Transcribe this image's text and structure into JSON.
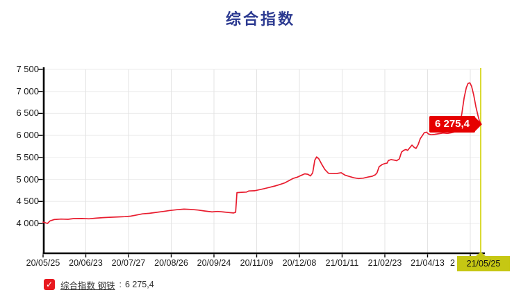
{
  "title": "综合指数",
  "colors": {
    "line": "#e81c2e",
    "callout_bg": "#e60000",
    "callout_text": "#ffffff",
    "crosshair": "#d0d100",
    "highlight_bg": "#c6c713",
    "title": "#2b3990",
    "checkbox": "#e8191f",
    "grid_h": "#ebebeb",
    "grid_v": "#e3e3e3",
    "axis": "#000000"
  },
  "chart_data": {
    "type": "line",
    "title": "综合指数",
    "series_name": "综合指数 钢铁",
    "ylim": [
      3320,
      7500
    ],
    "grid": true,
    "y_ticks": [
      {
        "label": "7 500",
        "value": 7500
      },
      {
        "label": "7 000",
        "value": 7000
      },
      {
        "label": "6 500",
        "value": 6500
      },
      {
        "label": "6 000",
        "value": 6000
      },
      {
        "label": "5 500",
        "value": 5500
      },
      {
        "label": "5 000",
        "value": 5000
      },
      {
        "label": "4 500",
        "value": 4500
      },
      {
        "label": "4 000",
        "value": 4000
      }
    ],
    "x_ticks": [
      "20/05/25",
      "20/06/23",
      "20/07/27",
      "20/08/26",
      "20/09/24",
      "20/11/09",
      "20/12/08",
      "21/01/11",
      "21/02/23",
      "21/04/13"
    ],
    "x_partial_label": "2",
    "highlighted_x_label": "21/05/25",
    "last_value": 6275.4,
    "last_value_label": "6 275,4",
    "points": [
      [
        0.0,
        4030
      ],
      [
        0.005,
        4015
      ],
      [
        0.01,
        4000
      ],
      [
        0.016,
        4058
      ],
      [
        0.025,
        4088
      ],
      [
        0.041,
        4100
      ],
      [
        0.057,
        4095
      ],
      [
        0.07,
        4110
      ],
      [
        0.089,
        4112
      ],
      [
        0.105,
        4105
      ],
      [
        0.121,
        4120
      ],
      [
        0.137,
        4132
      ],
      [
        0.152,
        4140
      ],
      [
        0.171,
        4148
      ],
      [
        0.187,
        4155
      ],
      [
        0.2,
        4165
      ],
      [
        0.213,
        4190
      ],
      [
        0.227,
        4218
      ],
      [
        0.243,
        4230
      ],
      [
        0.259,
        4252
      ],
      [
        0.275,
        4272
      ],
      [
        0.29,
        4295
      ],
      [
        0.306,
        4312
      ],
      [
        0.322,
        4325
      ],
      [
        0.338,
        4318
      ],
      [
        0.354,
        4305
      ],
      [
        0.37,
        4282
      ],
      [
        0.386,
        4262
      ],
      [
        0.398,
        4272
      ],
      [
        0.411,
        4262
      ],
      [
        0.425,
        4248
      ],
      [
        0.435,
        4238
      ],
      [
        0.44,
        4255
      ],
      [
        0.443,
        4700
      ],
      [
        0.454,
        4708
      ],
      [
        0.465,
        4712
      ],
      [
        0.47,
        4738
      ],
      [
        0.483,
        4742
      ],
      [
        0.492,
        4762
      ],
      [
        0.505,
        4790
      ],
      [
        0.517,
        4818
      ],
      [
        0.53,
        4852
      ],
      [
        0.541,
        4885
      ],
      [
        0.552,
        4920
      ],
      [
        0.562,
        4975
      ],
      [
        0.571,
        5022
      ],
      [
        0.581,
        5052
      ],
      [
        0.59,
        5092
      ],
      [
        0.598,
        5128
      ],
      [
        0.605,
        5118
      ],
      [
        0.611,
        5080
      ],
      [
        0.616,
        5150
      ],
      [
        0.621,
        5440
      ],
      [
        0.625,
        5510
      ],
      [
        0.63,
        5470
      ],
      [
        0.637,
        5340
      ],
      [
        0.644,
        5225
      ],
      [
        0.652,
        5140
      ],
      [
        0.662,
        5132
      ],
      [
        0.671,
        5135
      ],
      [
        0.681,
        5152
      ],
      [
        0.69,
        5098
      ],
      [
        0.7,
        5068
      ],
      [
        0.71,
        5038
      ],
      [
        0.721,
        5020
      ],
      [
        0.732,
        5030
      ],
      [
        0.743,
        5055
      ],
      [
        0.752,
        5072
      ],
      [
        0.759,
        5105
      ],
      [
        0.763,
        5150
      ],
      [
        0.768,
        5290
      ],
      [
        0.775,
        5340
      ],
      [
        0.781,
        5360
      ],
      [
        0.786,
        5370
      ],
      [
        0.789,
        5430
      ],
      [
        0.795,
        5450
      ],
      [
        0.802,
        5440
      ],
      [
        0.808,
        5425
      ],
      [
        0.814,
        5465
      ],
      [
        0.819,
        5620
      ],
      [
        0.824,
        5660
      ],
      [
        0.829,
        5680
      ],
      [
        0.833,
        5660
      ],
      [
        0.838,
        5720
      ],
      [
        0.843,
        5780
      ],
      [
        0.848,
        5730
      ],
      [
        0.852,
        5705
      ],
      [
        0.857,
        5790
      ],
      [
        0.862,
        5930
      ],
      [
        0.867,
        6000
      ],
      [
        0.871,
        6060
      ],
      [
        0.876,
        6075
      ],
      [
        0.881,
        6030
      ],
      [
        0.887,
        6015
      ],
      [
        0.895,
        6025
      ],
      [
        0.905,
        6040
      ],
      [
        0.914,
        6055
      ],
      [
        0.924,
        6045
      ],
      [
        0.933,
        6060
      ],
      [
        0.941,
        6080
      ],
      [
        0.948,
        6110
      ],
      [
        0.952,
        6230
      ],
      [
        0.957,
        6500
      ],
      [
        0.962,
        6850
      ],
      [
        0.967,
        7080
      ],
      [
        0.971,
        7180
      ],
      [
        0.975,
        7195
      ],
      [
        0.979,
        7120
      ],
      [
        0.984,
        6920
      ],
      [
        0.989,
        6650
      ],
      [
        0.994,
        6440
      ],
      [
        0.997,
        6330
      ],
      [
        1.0,
        6275.4
      ]
    ]
  },
  "legend": {
    "check_glyph": "✓",
    "series_label": "综合指数 钢铁",
    "separator": ":",
    "value": "6 275,4"
  },
  "callout": {
    "text": "6 275,4"
  }
}
